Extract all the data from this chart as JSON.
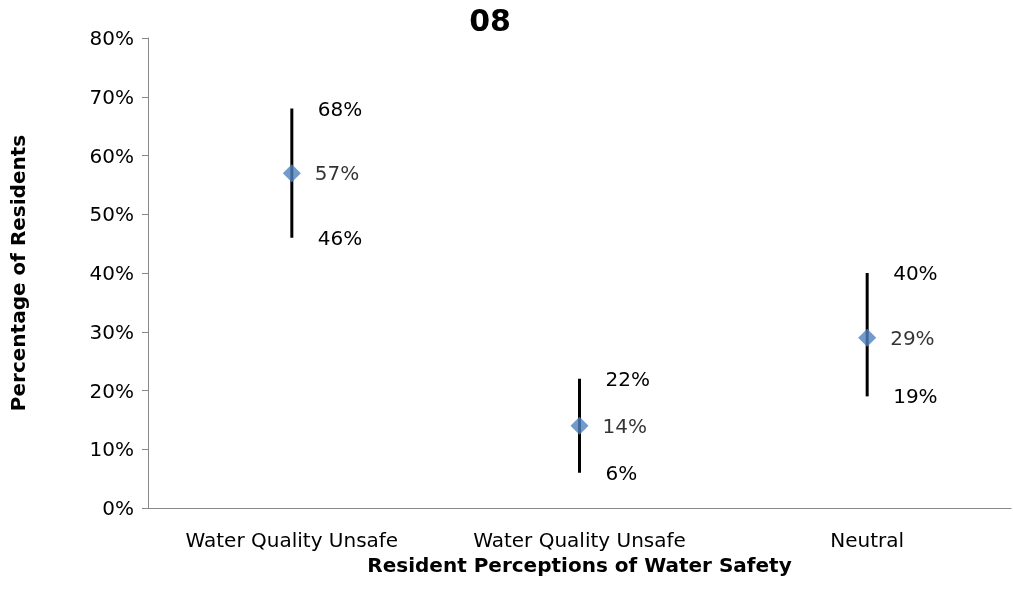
{
  "chart_data": {
    "type": "scatter",
    "title": "08",
    "categories": [
      "Water Quality Unsafe",
      "Water Quality Unsafe",
      "Neutral"
    ],
    "values": [
      57,
      14,
      29
    ],
    "value_labels": [
      "57%",
      "14%",
      "29%"
    ],
    "errors": [
      [
        46,
        68
      ],
      [
        6,
        22
      ],
      [
        19,
        40
      ]
    ],
    "color": "#4f81bd",
    "marker": "diamond",
    "xlabel": "Resident Perceptions of Water Safety",
    "ylabel": "Percentage of Residents",
    "ylim": [
      0,
      80
    ],
    "yticks": [
      {
        "value": 0,
        "label": "0%"
      },
      {
        "value": 10,
        "label": "10%"
      },
      {
        "value": 20,
        "label": "20%"
      },
      {
        "value": 30,
        "label": "30%"
      },
      {
        "value": 40,
        "label": "40%"
      },
      {
        "value": 50,
        "label": "50%"
      },
      {
        "value": 60,
        "label": "60%"
      },
      {
        "value": 70,
        "label": "70%"
      },
      {
        "value": 80,
        "label": "80%"
      }
    ],
    "annotations": [
      "68%",
      "46%",
      "22%",
      "6%",
      "40%",
      "19%"
    ],
    "grid": false
  }
}
